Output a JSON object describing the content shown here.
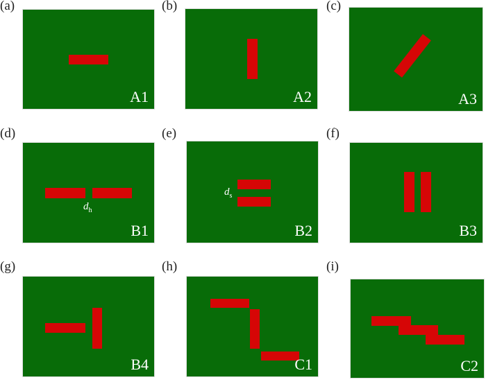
{
  "colors": {
    "background": "#086c08",
    "bar": "#d60606"
  },
  "panels": [
    {
      "letter": "(a)",
      "tag": "A1"
    },
    {
      "letter": "(b)",
      "tag": "A2"
    },
    {
      "letter": "(c)",
      "tag": "A3"
    },
    {
      "letter": "(d)",
      "tag": "B1",
      "dim": "d",
      "dim_sub": "h"
    },
    {
      "letter": "(e)",
      "tag": "B2",
      "dim": "d",
      "dim_sub": "s"
    },
    {
      "letter": "(f)",
      "tag": "B3"
    },
    {
      "letter": "(g)",
      "tag": "B4"
    },
    {
      "letter": "(h)",
      "tag": "C1"
    },
    {
      "letter": "(i)",
      "tag": "C2"
    }
  ]
}
